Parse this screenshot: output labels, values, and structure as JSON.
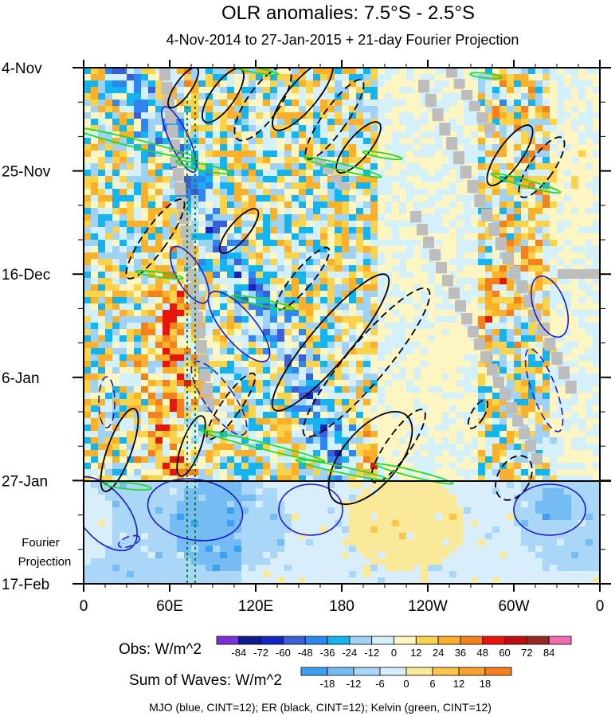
{
  "chart_data": {
    "type": "heatmap",
    "title": "OLR anomalies: 7.5°S - 2.5°S",
    "subtitle": "4-Nov-2014 to 27-Jan-2015 + 21-day Fourier Projection",
    "x_ticks": [
      "0",
      "60E",
      "120E",
      "180",
      "120W",
      "60W",
      "0"
    ],
    "x_tick_lon": [
      0,
      60,
      120,
      180,
      240,
      300,
      360
    ],
    "y_ticks": [
      "4-Nov",
      "25-Nov",
      "16-Dec",
      "6-Jan",
      "27-Jan",
      "17-Feb"
    ],
    "y_tick_day": [
      0,
      21,
      42,
      63,
      84,
      105
    ],
    "y_range_days": [
      0,
      105
    ],
    "x_range_lon": [
      0,
      360
    ],
    "projection_start_day": 84,
    "projection_label": [
      "Fourier",
      "Projection"
    ],
    "obs_colorbar": {
      "label": "Obs: W/m^2",
      "levels": [
        "-84",
        "-72",
        "-60",
        "-48",
        "-36",
        "-24",
        "-12",
        "0",
        "12",
        "24",
        "36",
        "48",
        "60",
        "72",
        "84"
      ],
      "colors": [
        "#7b2fd6",
        "#0c1c8c",
        "#1426bf",
        "#3a5fd9",
        "#2f86f0",
        "#14b4f0",
        "#9fd2f5",
        "#d4f1fb",
        "#fdf6c2",
        "#fbd34a",
        "#fbb02a",
        "#f5801e",
        "#e8150d",
        "#bd0f0f",
        "#962a22",
        "#f06ab4"
      ]
    },
    "waves_colorbar": {
      "label": "Sum of Waves: W/m^2",
      "levels": [
        "-18",
        "-12",
        "-6",
        "0",
        "6",
        "12",
        "18"
      ],
      "colors": [
        "#3ea0f0",
        "#74bcf3",
        "#aad6f7",
        "#d8eefb",
        "#fbe99a",
        "#fbc64a",
        "#f9a12f",
        "#f5801e"
      ]
    },
    "legend_text": "MJO (blue, CINT=12); ER (black, CINT=12); Kelvin (green, CINT=12)",
    "series_colors": {
      "mjo": "#1a1ad0",
      "er": "#000000",
      "kelvin": "#22dd22"
    }
  }
}
